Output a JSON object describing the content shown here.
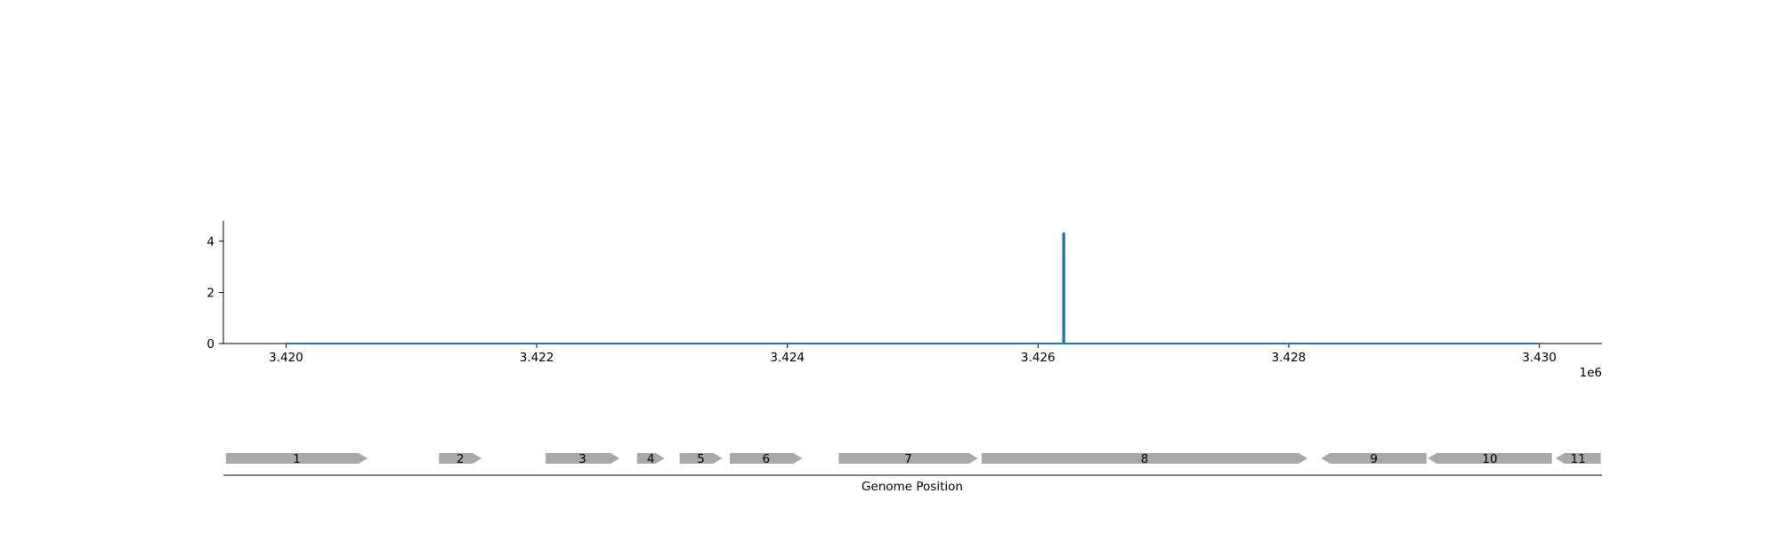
{
  "chart_data": {
    "type": "line",
    "title": "",
    "ylabel": "",
    "xlabel": "",
    "x_offset_label": "1e6",
    "xlim": [
      3419500,
      3430500
    ],
    "ylim": [
      0,
      4.8
    ],
    "x_ticks": [
      {
        "value": 3420000,
        "label": "3.420"
      },
      {
        "value": 3422000,
        "label": "3.422"
      },
      {
        "value": 3424000,
        "label": "3.424"
      },
      {
        "value": 3426000,
        "label": "3.426"
      },
      {
        "value": 3428000,
        "label": "3.428"
      },
      {
        "value": 3430000,
        "label": "3.430"
      }
    ],
    "y_ticks": [
      {
        "value": 0,
        "label": "0"
      },
      {
        "value": 2,
        "label": "2"
      },
      {
        "value": 4,
        "label": "4"
      }
    ],
    "line_color": "#1f77b4",
    "series": [
      {
        "x": [
          3420000,
          3426200,
          3426200,
          3426210,
          3426210,
          3430000
        ],
        "y": [
          0,
          0,
          4.3,
          4.3,
          0,
          0
        ]
      }
    ],
    "gene_track": {
      "axis_title": "Genome Position",
      "gene_color": "#a9a9a9",
      "genes": [
        {
          "label": "1",
          "start": 3419520,
          "end": 3420650,
          "strand": "+"
        },
        {
          "label": "2",
          "start": 3421220,
          "end": 3421560,
          "strand": "+"
        },
        {
          "label": "3",
          "start": 3422070,
          "end": 3422660,
          "strand": "+"
        },
        {
          "label": "4",
          "start": 3422800,
          "end": 3423020,
          "strand": "+"
        },
        {
          "label": "5",
          "start": 3423140,
          "end": 3423480,
          "strand": "+"
        },
        {
          "label": "6",
          "start": 3423540,
          "end": 3424120,
          "strand": "+"
        },
        {
          "label": "7",
          "start": 3424410,
          "end": 3425520,
          "strand": "+"
        },
        {
          "label": "8",
          "start": 3425550,
          "end": 3428150,
          "strand": "+"
        },
        {
          "label": "9",
          "start": 3428260,
          "end": 3429100,
          "strand": "-"
        },
        {
          "label": "10",
          "start": 3429110,
          "end": 3430100,
          "strand": "-"
        },
        {
          "label": "11",
          "start": 3430130,
          "end": 3430490,
          "strand": "-"
        }
      ]
    }
  }
}
